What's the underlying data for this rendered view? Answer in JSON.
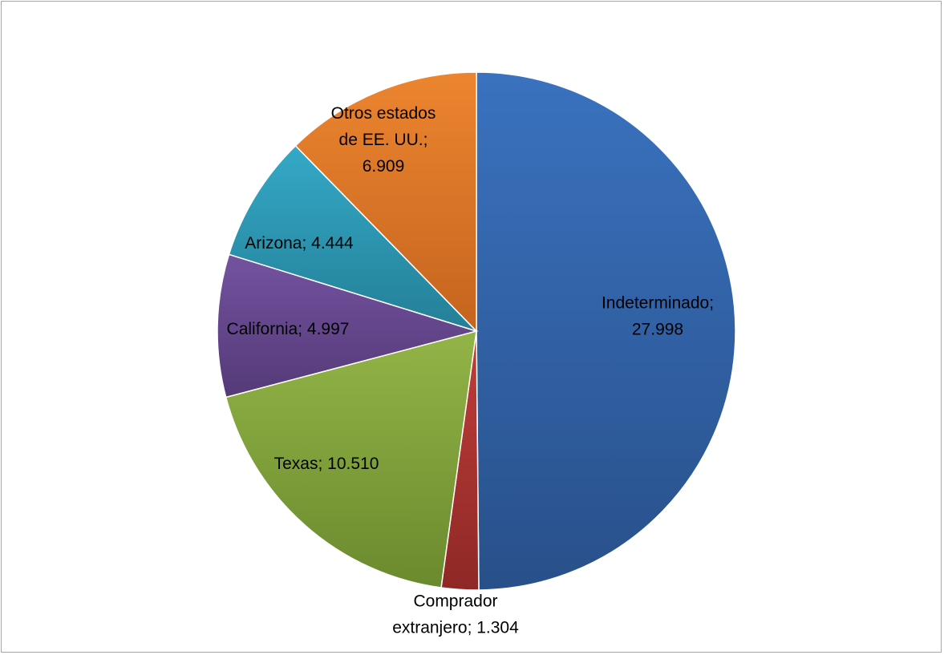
{
  "chart_data": {
    "type": "pie",
    "title": "",
    "slices": [
      {
        "label": "Indeterminado",
        "value": 27998,
        "display": "27.998",
        "color": "#3a6cb4",
        "label_lines": [
          "Indeterminado;",
          "27.998"
        ]
      },
      {
        "label": "Comprador extranjero",
        "value": 1304,
        "display": "1.304",
        "color": "#b73a37",
        "label_lines": [
          "Comprador",
          "extranjero; 1.304"
        ]
      },
      {
        "label": "Texas",
        "value": 10510,
        "display": "10.510",
        "color": "#87a93e",
        "label_lines": [
          "Texas; 10.510"
        ]
      },
      {
        "label": "California",
        "value": 4997,
        "display": "4.997",
        "color": "#6c4e94",
        "label_lines": [
          "California; 4.997"
        ]
      },
      {
        "label": "Arizona",
        "value": 4444,
        "display": "4.444",
        "color": "#2f9cbb",
        "label_lines": [
          "Arizona; 4.444"
        ]
      },
      {
        "label": "Otros estados de EE. UU.",
        "value": 6909,
        "display": "6.909",
        "color": "#e27b2b",
        "label_lines": [
          "Otros estados",
          "de EE. UU.;",
          "6.909"
        ]
      }
    ],
    "start_angle": "12 o'clock",
    "direction": "clockwise",
    "legend": "none",
    "data_labels": "category; value"
  }
}
